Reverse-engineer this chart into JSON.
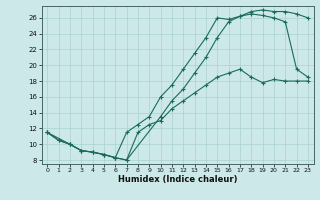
{
  "xlabel": "Humidex (Indice chaleur)",
  "bg_color": "#cce8e8",
  "line_color": "#1a6b5a",
  "grid_color": "#aad0d0",
  "xlim": [
    -0.5,
    23.5
  ],
  "ylim": [
    7.5,
    27.5
  ],
  "xticks": [
    0,
    1,
    2,
    3,
    4,
    5,
    6,
    7,
    8,
    9,
    10,
    11,
    12,
    13,
    14,
    15,
    16,
    17,
    18,
    19,
    20,
    21,
    22,
    23
  ],
  "yticks": [
    8,
    10,
    12,
    14,
    16,
    18,
    20,
    22,
    24,
    26
  ],
  "line1_x": [
    0,
    1,
    2,
    3,
    4,
    5,
    6,
    7,
    8,
    9,
    10,
    11,
    12,
    13,
    14,
    15,
    16,
    17,
    18,
    19,
    20,
    21,
    22,
    23
  ],
  "line1_y": [
    11.5,
    10.5,
    10.0,
    9.2,
    9.0,
    8.7,
    8.3,
    8.0,
    11.5,
    12.5,
    13.0,
    14.5,
    15.5,
    16.5,
    17.5,
    18.5,
    19.0,
    19.5,
    18.5,
    17.8,
    18.2,
    18.0,
    18.0,
    18.0
  ],
  "line2_x": [
    0,
    1,
    2,
    3,
    4,
    5,
    6,
    7,
    8,
    9,
    10,
    11,
    12,
    13,
    14,
    15,
    16,
    17,
    18,
    19,
    20,
    21,
    22,
    23
  ],
  "line2_y": [
    11.5,
    10.5,
    10.0,
    9.2,
    9.0,
    8.7,
    8.3,
    11.5,
    12.5,
    13.5,
    16.0,
    17.5,
    19.5,
    21.5,
    23.5,
    26.0,
    25.8,
    26.2,
    26.5,
    26.3,
    26.0,
    25.5,
    19.5,
    18.5
  ],
  "line3_x": [
    0,
    2,
    3,
    4,
    5,
    6,
    7,
    10,
    11,
    12,
    13,
    14,
    15,
    16,
    17,
    18,
    19,
    20,
    21,
    22,
    23
  ],
  "line3_y": [
    11.5,
    10.0,
    9.2,
    9.0,
    8.7,
    8.3,
    8.0,
    13.5,
    15.5,
    17.0,
    19.0,
    21.0,
    23.5,
    25.5,
    26.2,
    26.8,
    27.0,
    26.8,
    26.8,
    26.5,
    26.0
  ]
}
